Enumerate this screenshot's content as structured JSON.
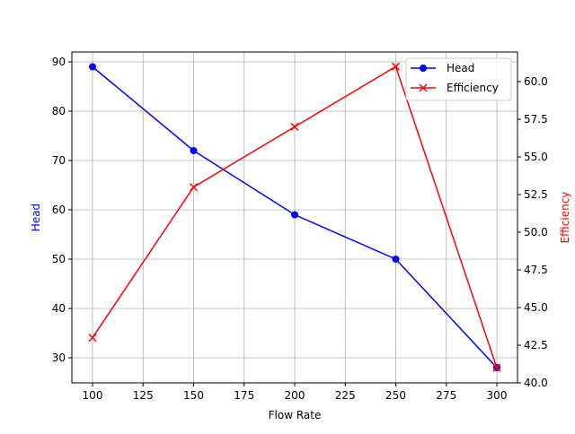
{
  "chart_data": {
    "type": "line",
    "title": "",
    "xlabel": "Flow Rate",
    "ylabel": "Head",
    "y2label": "Efficiency",
    "x": [
      100,
      150,
      200,
      250,
      300
    ],
    "series": [
      {
        "name": "Head",
        "axis": "left",
        "color": "#0000ff",
        "marker": "o",
        "values": [
          89,
          72,
          59,
          50,
          28
        ]
      },
      {
        "name": "Efficiency",
        "axis": "right",
        "color": "#ff0000",
        "marker": "x",
        "values": [
          43,
          53,
          57,
          61,
          41
        ]
      }
    ],
    "xticks": [
      "100",
      "125",
      "150",
      "175",
      "200",
      "225",
      "250",
      "275",
      "300"
    ],
    "yticks": [
      "30",
      "40",
      "50",
      "60",
      "70",
      "80",
      "90"
    ],
    "y2ticks": [
      "40.0",
      "42.5",
      "45.0",
      "47.5",
      "50.0",
      "52.5",
      "55.0",
      "57.5",
      "60.0"
    ],
    "ylim": [
      25,
      92
    ],
    "y2lim": [
      40,
      62
    ],
    "grid": true,
    "legend_position": "upper right"
  }
}
